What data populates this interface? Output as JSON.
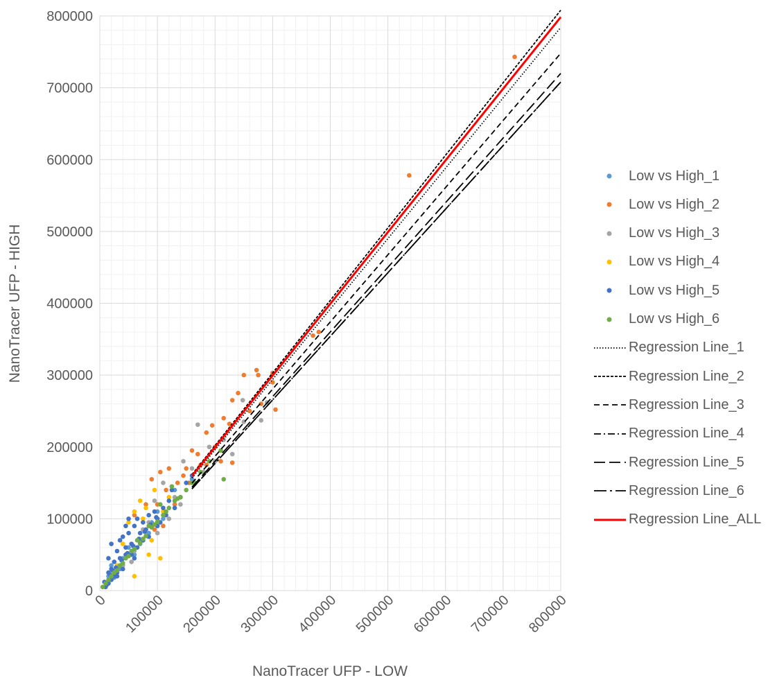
{
  "chart_data": {
    "type": "scatter",
    "title": "",
    "xlabel": "NanoTracer UFP - LOW",
    "ylabel": "NanoTracer UFP - HIGH",
    "xlim": [
      0,
      800000
    ],
    "ylim": [
      0,
      800000
    ],
    "x_ticks": [
      "0",
      "100000",
      "200000",
      "300000",
      "400000",
      "500000",
      "600000",
      "700000",
      "800000"
    ],
    "y_ticks": [
      "0",
      "100000",
      "200000",
      "300000",
      "400000",
      "500000",
      "600000",
      "700000",
      "800000"
    ],
    "grid": true,
    "legend_position": "right",
    "series": [
      {
        "name": "Low vs High_1",
        "color": "#5B9BD5",
        "points": [
          [
            15000,
            20000
          ],
          [
            25000,
            18000
          ],
          [
            40000,
            45000
          ],
          [
            60000,
            50000
          ],
          [
            75000,
            70000
          ],
          [
            90000,
            95000
          ],
          [
            110000,
            100000
          ],
          [
            130000,
            140000
          ],
          [
            160000,
            155000
          ],
          [
            20000,
            35000
          ],
          [
            50000,
            60000
          ],
          [
            70000,
            65000
          ],
          [
            85000,
            80000
          ],
          [
            35000,
            30000
          ],
          [
            100000,
            110000
          ]
        ]
      },
      {
        "name": "Low vs High_2",
        "color": "#ED7D31",
        "points": [
          [
            720000,
            743000
          ],
          [
            537000,
            578000
          ],
          [
            380000,
            360000
          ],
          [
            370000,
            355000
          ],
          [
            300000,
            303000
          ],
          [
            305000,
            252000
          ],
          [
            272000,
            307000
          ],
          [
            275000,
            300000
          ],
          [
            240000,
            275000
          ],
          [
            230000,
            265000
          ],
          [
            225000,
            232000
          ],
          [
            200000,
            200000
          ],
          [
            185000,
            220000
          ],
          [
            210000,
            180000
          ],
          [
            160000,
            195000
          ],
          [
            150000,
            170000
          ],
          [
            145000,
            160000
          ],
          [
            120000,
            170000
          ],
          [
            105000,
            165000
          ],
          [
            90000,
            155000
          ],
          [
            115000,
            140000
          ],
          [
            80000,
            120000
          ],
          [
            130000,
            120000
          ],
          [
            60000,
            105000
          ],
          [
            100000,
            120000
          ],
          [
            135000,
            150000
          ],
          [
            170000,
            190000
          ],
          [
            195000,
            230000
          ],
          [
            215000,
            240000
          ],
          [
            260000,
            250000
          ],
          [
            280000,
            260000
          ],
          [
            250000,
            300000
          ],
          [
            300000,
            290000
          ],
          [
            230000,
            178000
          ],
          [
            175000,
            175000
          ],
          [
            140000,
            130000
          ],
          [
            155000,
            150000
          ],
          [
            185000,
            175000
          ],
          [
            110000,
            90000
          ],
          [
            95000,
            85000
          ]
        ]
      },
      {
        "name": "Low vs High_3",
        "color": "#A5A5A5",
        "points": [
          [
            248000,
            265000
          ],
          [
            280000,
            237000
          ],
          [
            290000,
            262000
          ],
          [
            250000,
            235000
          ],
          [
            170000,
            231000
          ],
          [
            145000,
            180000
          ],
          [
            160000,
            170000
          ],
          [
            130000,
            130000
          ],
          [
            110000,
            150000
          ],
          [
            180000,
            165000
          ],
          [
            200000,
            180000
          ],
          [
            120000,
            100000
          ],
          [
            85000,
            95000
          ],
          [
            100000,
            80000
          ],
          [
            60000,
            55000
          ],
          [
            215000,
            210000
          ],
          [
            230000,
            190000
          ],
          [
            190000,
            200000
          ],
          [
            140000,
            120000
          ],
          [
            95000,
            125000
          ],
          [
            75000,
            85000
          ],
          [
            55000,
            40000
          ],
          [
            40000,
            35000
          ]
        ]
      },
      {
        "name": "Low vs High_4",
        "color": "#FFC000",
        "points": [
          [
            60000,
            110000
          ],
          [
            70000,
            125000
          ],
          [
            50000,
            95000
          ],
          [
            110000,
            110000
          ],
          [
            120000,
            130000
          ],
          [
            90000,
            70000
          ],
          [
            105000,
            45000
          ],
          [
            85000,
            50000
          ],
          [
            60000,
            20000
          ],
          [
            95000,
            140000
          ],
          [
            75000,
            100000
          ],
          [
            40000,
            65000
          ],
          [
            30000,
            35000
          ],
          [
            80000,
            115000
          ]
        ]
      },
      {
        "name": "Low vs High_5",
        "color": "#4472C4",
        "points": [
          [
            10000,
            5000
          ],
          [
            15000,
            25000
          ],
          [
            20000,
            15000
          ],
          [
            25000,
            40000
          ],
          [
            30000,
            55000
          ],
          [
            35000,
            70000
          ],
          [
            20000,
            65000
          ],
          [
            15000,
            45000
          ],
          [
            40000,
            75000
          ],
          [
            45000,
            60000
          ],
          [
            50000,
            80000
          ],
          [
            55000,
            65000
          ],
          [
            60000,
            90000
          ],
          [
            65000,
            100000
          ],
          [
            50000,
            100000
          ],
          [
            45000,
            90000
          ],
          [
            70000,
            80000
          ],
          [
            75000,
            95000
          ],
          [
            80000,
            85000
          ],
          [
            85000,
            105000
          ],
          [
            90000,
            90000
          ],
          [
            95000,
            110000
          ],
          [
            100000,
            100000
          ],
          [
            110000,
            115000
          ],
          [
            120000,
            125000
          ],
          [
            125000,
            140000
          ],
          [
            60000,
            45000
          ],
          [
            40000,
            30000
          ],
          [
            30000,
            25000
          ],
          [
            35000,
            45000
          ],
          [
            25000,
            20000
          ],
          [
            55000,
            50000
          ],
          [
            65000,
            60000
          ],
          [
            75000,
            70000
          ],
          [
            85000,
            75000
          ],
          [
            100000,
            90000
          ],
          [
            105000,
            95000
          ],
          [
            115000,
            105000
          ],
          [
            130000,
            115000
          ],
          [
            140000,
            130000
          ],
          [
            150000,
            150000
          ],
          [
            160000,
            160000
          ],
          [
            45000,
            50000
          ],
          [
            30000,
            20000
          ],
          [
            20000,
            30000
          ],
          [
            15000,
            10000
          ],
          [
            8000,
            12000
          ],
          [
            12000,
            8000
          ],
          [
            18000,
            22000
          ],
          [
            22000,
            28000
          ],
          [
            28000,
            32000
          ],
          [
            38000,
            42000
          ],
          [
            48000,
            52000
          ],
          [
            58000,
            62000
          ],
          [
            68000,
            72000
          ],
          [
            78000,
            82000
          ],
          [
            88000,
            92000
          ],
          [
            98000,
            102000
          ]
        ]
      },
      {
        "name": "Low vs High_6",
        "color": "#70AD47",
        "points": [
          [
            5000,
            5000
          ],
          [
            10000,
            10000
          ],
          [
            20000,
            20000
          ],
          [
            30000,
            28000
          ],
          [
            40000,
            38000
          ],
          [
            50000,
            48000
          ],
          [
            60000,
            58000
          ],
          [
            70000,
            66000
          ],
          [
            80000,
            76000
          ],
          [
            90000,
            88000
          ],
          [
            100000,
            96000
          ],
          [
            110000,
            105000
          ],
          [
            120000,
            115000
          ],
          [
            130000,
            125000
          ],
          [
            140000,
            130000
          ],
          [
            150000,
            140000
          ],
          [
            160000,
            150000
          ],
          [
            175000,
            165000
          ],
          [
            190000,
            180000
          ],
          [
            210000,
            195000
          ],
          [
            215000,
            155000
          ],
          [
            165000,
            150000
          ],
          [
            125000,
            145000
          ],
          [
            105000,
            120000
          ],
          [
            85000,
            90000
          ],
          [
            65000,
            70000
          ],
          [
            45000,
            45000
          ],
          [
            35000,
            35000
          ],
          [
            25000,
            25000
          ],
          [
            15000,
            15000
          ],
          [
            55000,
            55000
          ],
          [
            75000,
            72000
          ],
          [
            95000,
            92000
          ],
          [
            115000,
            110000
          ],
          [
            135000,
            128000
          ]
        ]
      }
    ],
    "regression_lines": [
      {
        "name": "Regression Line_1",
        "color": "#000000",
        "style": "dotted",
        "slope": 0.98,
        "intercept": 0
      },
      {
        "name": "Regression Line_2",
        "color": "#000000",
        "style": "short-dash",
        "slope": 1.01,
        "intercept": 0
      },
      {
        "name": "Regression Line_3",
        "color": "#000000",
        "style": "dash",
        "slope": 0.935,
        "intercept": 0
      },
      {
        "name": "Regression Line_4",
        "color": "#000000",
        "style": "dash-dot",
        "slope": 0.885,
        "intercept": 0
      },
      {
        "name": "Regression Line_5",
        "color": "#000000",
        "style": "long-dash",
        "slope": 0.9,
        "intercept": 0
      },
      {
        "name": "Regression Line_6",
        "color": "#000000",
        "style": "long-dash-dot",
        "slope": 0.885,
        "intercept": 0
      },
      {
        "name": "Regression Line_ALL",
        "color": "#FF0000",
        "style": "solid",
        "slope": 0.998,
        "intercept": 0
      }
    ]
  }
}
